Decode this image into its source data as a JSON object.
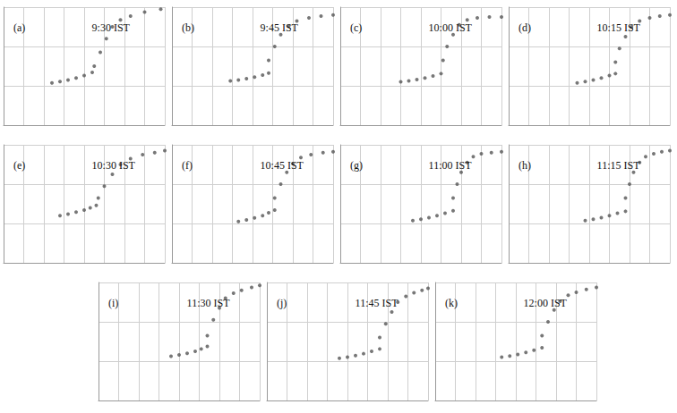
{
  "chart_data": [
    {
      "type": "scatter",
      "title": "(a)",
      "subtitle": "9:30 IST",
      "xlim": [
        1,
        9
      ],
      "xticks": [
        1,
        2,
        3,
        4,
        5,
        6,
        7,
        8,
        9
      ],
      "ylim": [
        0,
        600
      ],
      "yticks": [
        0,
        200,
        400,
        600
      ],
      "grid": true,
      "tick_labels": false,
      "series": [
        {
          "color": "#555555",
          "marker": "circle",
          "x": [
            3.4,
            3.8,
            4.2,
            4.6,
            5.0,
            5.4
          ],
          "values": [
            215,
            222,
            230,
            240,
            252,
            268
          ]
        },
        {
          "color": "#555555",
          "marker": "circle",
          "x": [
            5.5,
            5.8,
            6.1,
            6.4,
            6.8,
            7.3,
            8.0,
            8.8
          ],
          "values": [
            300,
            370,
            440,
            500,
            535,
            555,
            575,
            590
          ]
        }
      ]
    },
    {
      "type": "scatter",
      "title": "(b)",
      "subtitle": "9:45 IST",
      "xlim": [
        1,
        9
      ],
      "xticks": [
        1,
        2,
        3,
        4,
        5,
        6,
        7,
        8,
        9
      ],
      "ylim": [
        0,
        600
      ],
      "yticks": [
        0,
        200,
        400,
        600
      ],
      "grid": true,
      "tick_labels": false,
      "series": [
        {
          "color": "#555555",
          "marker": "circle",
          "x": [
            3.9,
            4.3,
            4.7,
            5.1,
            5.5,
            5.8
          ],
          "values": [
            225,
            230,
            236,
            244,
            255,
            265
          ]
        },
        {
          "color": "#555555",
          "marker": "circle",
          "x": [
            5.8,
            6.1,
            6.4,
            6.8,
            7.2,
            7.8,
            8.4,
            9.0
          ],
          "values": [
            330,
            400,
            460,
            505,
            530,
            545,
            555,
            560
          ]
        }
      ]
    },
    {
      "type": "scatter",
      "title": "(c)",
      "subtitle": "10:00 IST",
      "xlim": [
        1,
        9
      ],
      "xticks": [
        1,
        2,
        3,
        4,
        5,
        6,
        7,
        8,
        9
      ],
      "ylim": [
        0,
        600
      ],
      "yticks": [
        0,
        200,
        400,
        600
      ],
      "grid": true,
      "tick_labels": false,
      "series": [
        {
          "color": "#555555",
          "marker": "circle",
          "x": [
            4.0,
            4.4,
            4.8,
            5.2,
            5.6,
            6.0
          ],
          "values": [
            220,
            225,
            232,
            240,
            250,
            262
          ]
        },
        {
          "color": "#555555",
          "marker": "circle",
          "x": [
            6.1,
            6.3,
            6.6,
            6.9,
            7.3,
            7.8,
            8.4,
            9.0
          ],
          "values": [
            330,
            400,
            460,
            510,
            535,
            545,
            550,
            550
          ]
        }
      ]
    },
    {
      "type": "scatter",
      "title": "(d)",
      "subtitle": "10:15 IST",
      "xlim": [
        1,
        9
      ],
      "xticks": [
        1,
        2,
        3,
        4,
        5,
        6,
        7,
        8,
        9
      ],
      "ylim": [
        0,
        600
      ],
      "yticks": [
        0,
        200,
        400,
        600
      ],
      "grid": true,
      "tick_labels": false,
      "series": [
        {
          "color": "#555555",
          "marker": "circle",
          "x": [
            4.4,
            4.8,
            5.2,
            5.6,
            6.0,
            6.3
          ],
          "values": [
            215,
            222,
            230,
            240,
            252,
            262
          ]
        },
        {
          "color": "#555555",
          "marker": "circle",
          "x": [
            6.3,
            6.5,
            6.8,
            7.1,
            7.5,
            8.0,
            8.5,
            9.0
          ],
          "values": [
            320,
            390,
            450,
            500,
            530,
            545,
            555,
            560
          ]
        }
      ]
    },
    {
      "type": "scatter",
      "title": "(e)",
      "subtitle": "10:30 IST",
      "xlim": [
        1,
        9
      ],
      "xticks": [
        1,
        2,
        3,
        4,
        5,
        6,
        7,
        8,
        9
      ],
      "ylim": [
        0,
        600
      ],
      "yticks": [
        0,
        200,
        400,
        600
      ],
      "grid": true,
      "tick_labels": false,
      "series": [
        {
          "color": "#555555",
          "marker": "circle",
          "x": [
            3.8,
            4.2,
            4.6,
            5.0,
            5.3,
            5.6
          ],
          "values": [
            240,
            248,
            258,
            268,
            280,
            292
          ]
        },
        {
          "color": "#555555",
          "marker": "circle",
          "x": [
            5.7,
            6.0,
            6.4,
            6.8,
            7.3,
            7.9,
            8.5,
            9.0
          ],
          "values": [
            330,
            390,
            450,
            500,
            530,
            550,
            560,
            570
          ]
        }
      ]
    },
    {
      "type": "scatter",
      "title": "(f)",
      "subtitle": "10:45 IST",
      "xlim": [
        1,
        9
      ],
      "xticks": [
        1,
        2,
        3,
        4,
        5,
        6,
        7,
        8,
        9
      ],
      "ylim": [
        0,
        600
      ],
      "yticks": [
        0,
        200,
        400,
        600
      ],
      "grid": true,
      "tick_labels": false,
      "series": [
        {
          "color": "#555555",
          "marker": "circle",
          "x": [
            4.3,
            4.7,
            5.1,
            5.5,
            5.8,
            6.1
          ],
          "values": [
            210,
            218,
            228,
            240,
            255,
            268
          ]
        },
        {
          "color": "#555555",
          "marker": "circle",
          "x": [
            6.1,
            6.4,
            6.7,
            7.0,
            7.4,
            7.9,
            8.5,
            9.0
          ],
          "values": [
            330,
            400,
            460,
            505,
            535,
            550,
            560,
            565
          ]
        }
      ]
    },
    {
      "type": "scatter",
      "title": "(g)",
      "subtitle": "11:00 IST",
      "xlim": [
        1,
        9
      ],
      "xticks": [
        1,
        2,
        3,
        4,
        5,
        6,
        7,
        8,
        9
      ],
      "ylim": [
        0,
        600
      ],
      "yticks": [
        0,
        200,
        400,
        600
      ],
      "grid": true,
      "tick_labels": false,
      "series": [
        {
          "color": "#555555",
          "marker": "circle",
          "x": [
            4.6,
            5.0,
            5.4,
            5.8,
            6.2,
            6.6
          ],
          "values": [
            215,
            222,
            230,
            240,
            252,
            265
          ]
        },
        {
          "color": "#555555",
          "marker": "circle",
          "x": [
            6.6,
            6.8,
            7.0,
            7.3,
            7.6,
            8.0,
            8.5,
            9.0
          ],
          "values": [
            330,
            400,
            460,
            510,
            540,
            555,
            560,
            565
          ]
        }
      ]
    },
    {
      "type": "scatter",
      "title": "(h)",
      "subtitle": "11:15 IST",
      "xlim": [
        1,
        9
      ],
      "xticks": [
        1,
        2,
        3,
        4,
        5,
        6,
        7,
        8,
        9
      ],
      "ylim": [
        0,
        600
      ],
      "yticks": [
        0,
        200,
        400,
        600
      ],
      "grid": true,
      "tick_labels": false,
      "series": [
        {
          "color": "#555555",
          "marker": "circle",
          "x": [
            4.8,
            5.2,
            5.6,
            6.0,
            6.4,
            6.8
          ],
          "values": [
            215,
            222,
            230,
            240,
            252,
            262
          ]
        },
        {
          "color": "#555555",
          "marker": "circle",
          "x": [
            6.8,
            7.0,
            7.2,
            7.5,
            7.8,
            8.2,
            8.6,
            9.0
          ],
          "values": [
            330,
            400,
            460,
            510,
            540,
            555,
            565,
            570
          ]
        }
      ]
    },
    {
      "type": "scatter",
      "title": "(i)",
      "subtitle": "11:30 IST",
      "xlim": [
        1,
        9
      ],
      "xticks": [
        1,
        2,
        3,
        4,
        5,
        6,
        7,
        8,
        9
      ],
      "ylim": [
        0,
        600
      ],
      "yticks": [
        0,
        200,
        400,
        600
      ],
      "grid": true,
      "tick_labels": false,
      "series": [
        {
          "color": "#555555",
          "marker": "circle",
          "x": [
            4.6,
            5.0,
            5.4,
            5.8,
            6.1,
            6.4
          ],
          "values": [
            225,
            232,
            240,
            250,
            262,
            275
          ]
        },
        {
          "color": "#555555",
          "marker": "circle",
          "x": [
            6.4,
            6.7,
            7.0,
            7.3,
            7.7,
            8.1,
            8.6,
            9.0
          ],
          "values": [
            330,
            410,
            470,
            520,
            545,
            560,
            575,
            585
          ]
        }
      ]
    },
    {
      "type": "scatter",
      "title": "(j)",
      "subtitle": "11:45 IST",
      "xlim": [
        1,
        9
      ],
      "xticks": [
        1,
        2,
        3,
        4,
        5,
        6,
        7,
        8,
        9
      ],
      "ylim": [
        0,
        600
      ],
      "yticks": [
        0,
        200,
        400,
        600
      ],
      "grid": true,
      "tick_labels": false,
      "series": [
        {
          "color": "#555555",
          "marker": "circle",
          "x": [
            4.6,
            5.0,
            5.4,
            5.8,
            6.2,
            6.6
          ],
          "values": [
            215,
            220,
            228,
            238,
            250,
            262
          ]
        },
        {
          "color": "#555555",
          "marker": "circle",
          "x": [
            6.6,
            6.9,
            7.2,
            7.5,
            7.9,
            8.3,
            8.7,
            9.0
          ],
          "values": [
            320,
            390,
            450,
            500,
            530,
            548,
            560,
            570
          ]
        }
      ]
    },
    {
      "type": "scatter",
      "title": "(k)",
      "subtitle": "12:00 IST",
      "xlim": [
        1,
        9
      ],
      "xticks": [
        1,
        2,
        3,
        4,
        5,
        6,
        7,
        8,
        9
      ],
      "ylim": [
        0,
        600
      ],
      "yticks": [
        0,
        200,
        400,
        600
      ],
      "grid": true,
      "tick_labels": false,
      "series": [
        {
          "color": "#555555",
          "marker": "circle",
          "x": [
            4.3,
            4.7,
            5.1,
            5.5,
            5.9,
            6.3
          ],
          "values": [
            220,
            226,
            234,
            244,
            256,
            268
          ]
        },
        {
          "color": "#555555",
          "marker": "circle",
          "x": [
            6.3,
            6.6,
            6.9,
            7.2,
            7.6,
            8.0,
            8.5,
            9.0
          ],
          "values": [
            330,
            400,
            460,
            505,
            535,
            550,
            565,
            575
          ]
        }
      ]
    }
  ]
}
